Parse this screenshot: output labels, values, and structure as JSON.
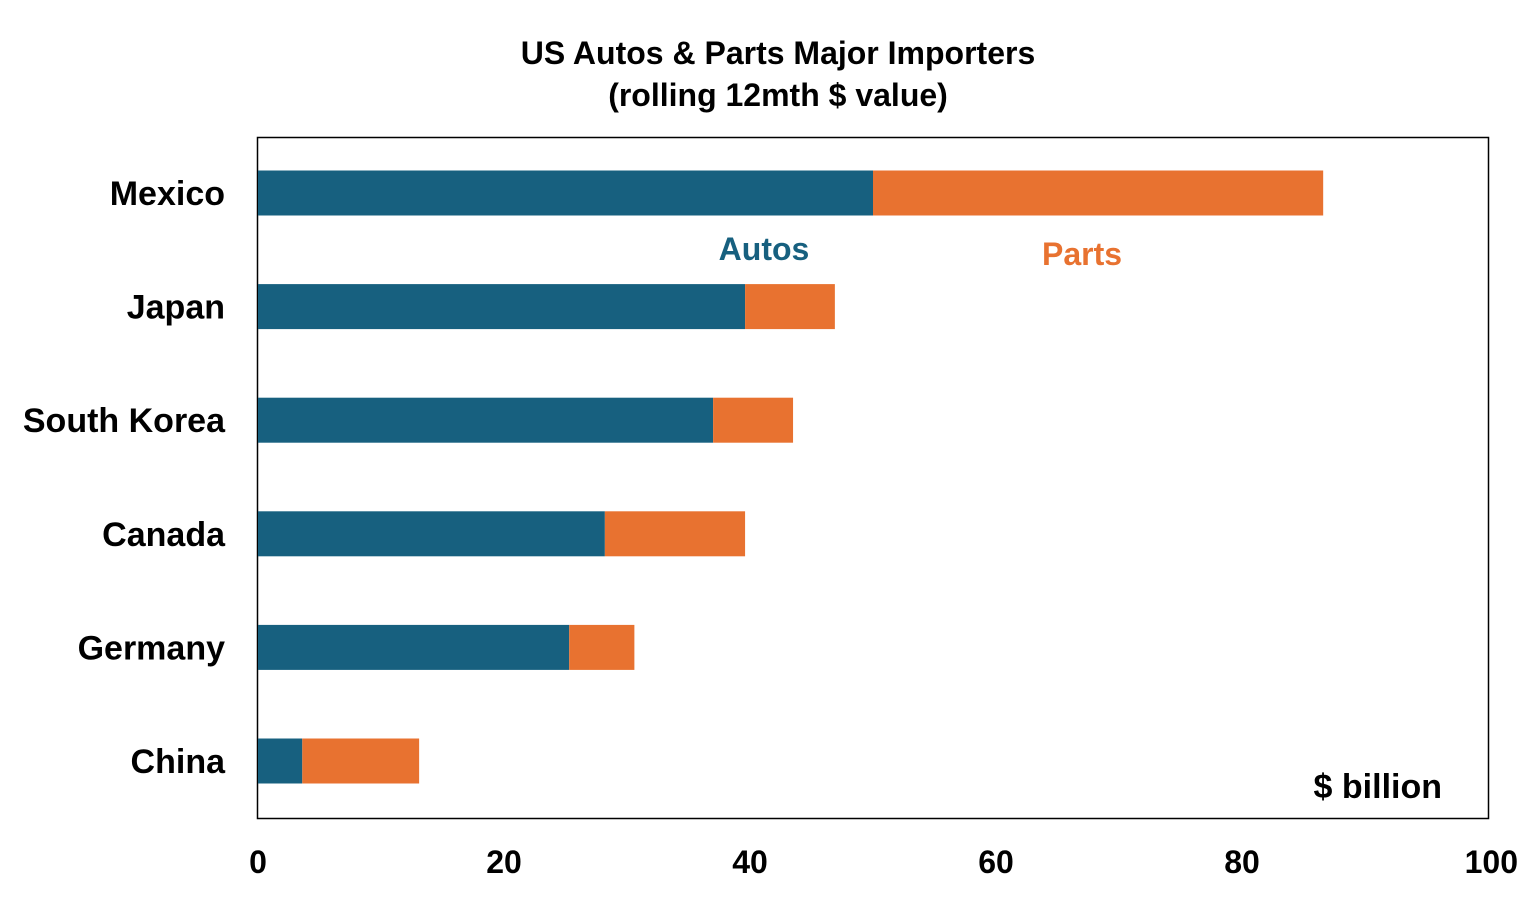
{
  "chart_data": {
    "type": "bar",
    "orientation": "horizontal",
    "stacked": true,
    "title": "US Autos & Parts Major Importers",
    "subtitle": "(rolling 12mth $ value)",
    "units_label": "$ billion",
    "categories": [
      "Mexico",
      "Japan",
      "South Korea",
      "Canada",
      "Germany",
      "China"
    ],
    "series": [
      {
        "name": "Autos",
        "color": "#17607f",
        "values": [
          50.0,
          39.6,
          37.0,
          28.2,
          25.3,
          3.6
        ]
      },
      {
        "name": "Parts",
        "color": "#e87230",
        "values": [
          36.6,
          7.3,
          6.5,
          11.4,
          5.3,
          9.5
        ]
      }
    ],
    "xlim": [
      0,
      100
    ],
    "xticks": [
      "0",
      "20",
      "40",
      "60",
      "80",
      "100"
    ],
    "grid": false,
    "legend": "inline labels"
  }
}
